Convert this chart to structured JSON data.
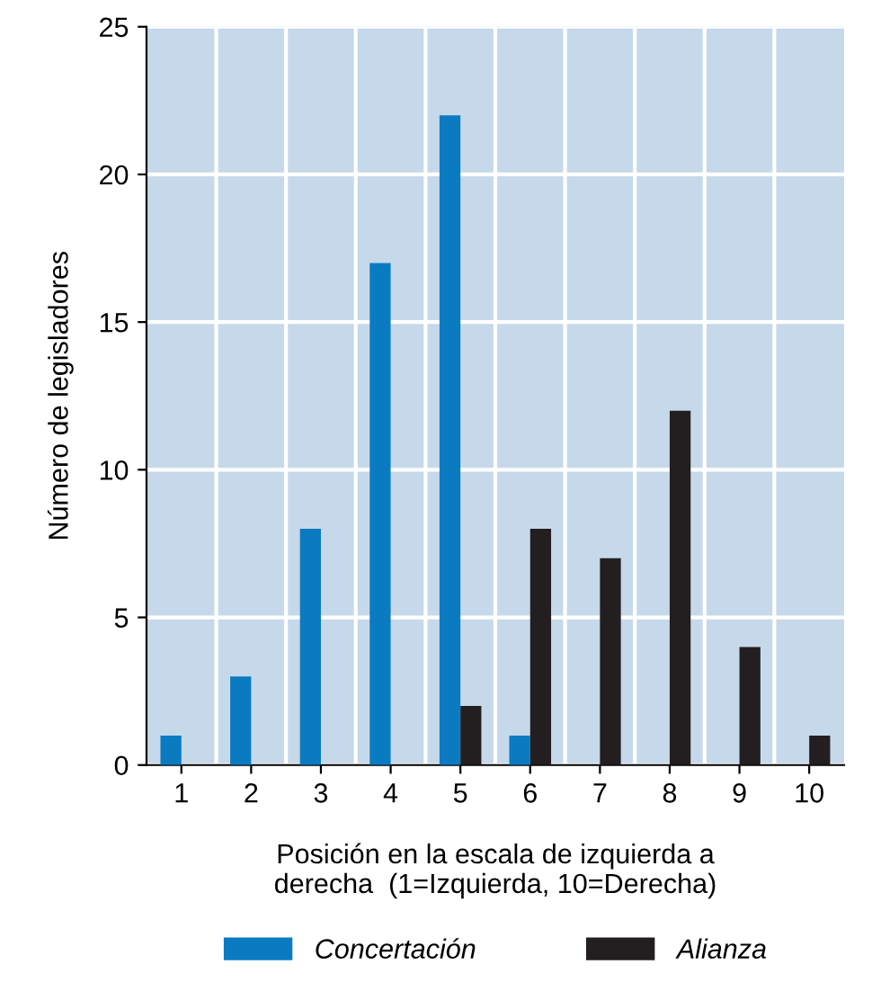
{
  "chart_data": {
    "type": "bar",
    "xlabel": "Posición en la escala de izquierda a\nderecha  (1=Izquierda, 10=Derecha)",
    "ylabel": "Número de legisladores",
    "categories": [
      "1",
      "2",
      "3",
      "4",
      "5",
      "6",
      "7",
      "8",
      "9",
      "10"
    ],
    "series": [
      {
        "name": "Concertación",
        "color": "#0a7bc1",
        "values": [
          1,
          3,
          8,
          17,
          22,
          1,
          0,
          0,
          0,
          0
        ]
      },
      {
        "name": "Alianza",
        "color": "#231f20",
        "values": [
          0,
          0,
          0,
          0,
          2,
          8,
          7,
          12,
          4,
          1
        ]
      }
    ],
    "ylim": [
      0,
      25
    ],
    "yticks": [
      0,
      5,
      10,
      15,
      20,
      25
    ],
    "grid": true,
    "legend": "bottom"
  }
}
